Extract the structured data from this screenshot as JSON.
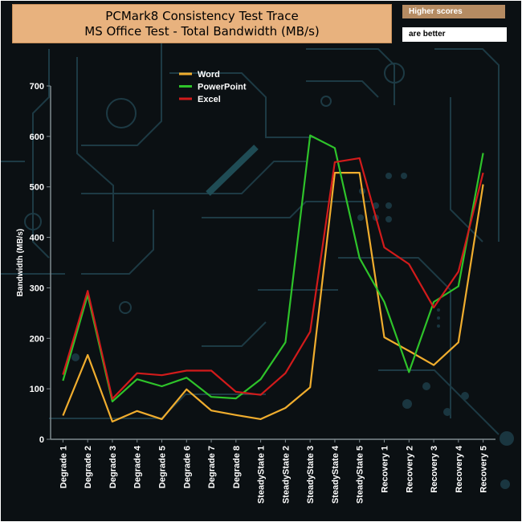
{
  "chart_data": {
    "type": "line",
    "title": "PCMark8 Consistency Test Trace",
    "subtitle": "MS Office Test - Total Bandwidth (MB/s)",
    "ylabel": "Bandwidth (MB/s)",
    "xlabel": "",
    "ylim": [
      0,
      700
    ],
    "yticks": [
      0,
      100,
      200,
      300,
      400,
      500,
      600,
      700
    ],
    "categories": [
      "Degrade 1",
      "Degrade 2",
      "Degrade 3",
      "Degrade 4",
      "Degrade 5",
      "Degrade 6",
      "Degrade 7",
      "Degrade 8",
      "SteadyState 1",
      "SteadyState 2",
      "SteadyState 3",
      "SteadyState 4",
      "SteadyState 5",
      "Recovery 1",
      "Recovery 2",
      "Recovery 3",
      "Recovery 4",
      "Recovery 5"
    ],
    "series": [
      {
        "name": "Word",
        "color": "#f0ad2e",
        "values": [
          47,
          167,
          35,
          56,
          40,
          99,
          57,
          48,
          40,
          62,
          103,
          528,
          528,
          202,
          175,
          147,
          192,
          505
        ]
      },
      {
        "name": "PowerPoint",
        "color": "#2ec32a",
        "values": [
          116,
          286,
          75,
          119,
          105,
          122,
          84,
          81,
          119,
          192,
          602,
          577,
          359,
          272,
          133,
          272,
          303,
          567
        ]
      },
      {
        "name": "Excel",
        "color": "#d21b1b",
        "values": [
          128,
          294,
          80,
          131,
          127,
          136,
          136,
          94,
          88,
          131,
          213,
          549,
          557,
          380,
          347,
          261,
          332,
          528
        ]
      }
    ],
    "legend_position": "top-left",
    "grid": false
  },
  "badges": {
    "top": "Higher scores",
    "bottom": "are better"
  }
}
